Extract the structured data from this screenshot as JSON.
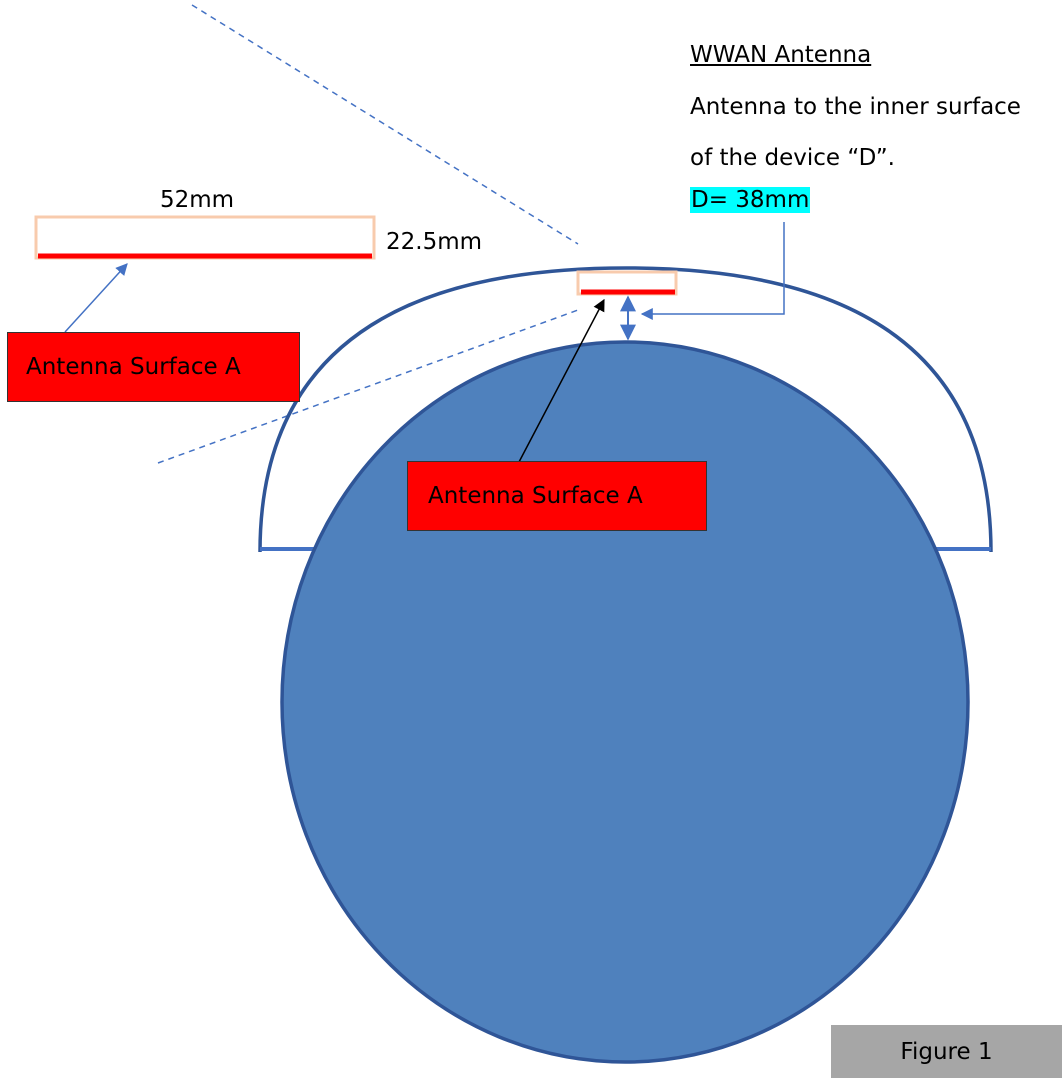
{
  "colors": {
    "head_fill": "#4f81bd",
    "outline": "#2f5597",
    "antenna_red": "#ff0000",
    "antenna_border": "#f8cbad",
    "highlight": "#00ffff",
    "figure_box": "#a6a6a6"
  },
  "labels": {
    "wwan_title": "WWAN Antenna",
    "description_line1": "Antenna to the inner surface",
    "description_line2": "of the device “D”.",
    "distance": "D= 38mm",
    "width": "52mm",
    "height": "22.5mm",
    "surface_left": "Antenna Surface A",
    "surface_center": "Antenna Surface A",
    "figure": "Figure 1"
  }
}
